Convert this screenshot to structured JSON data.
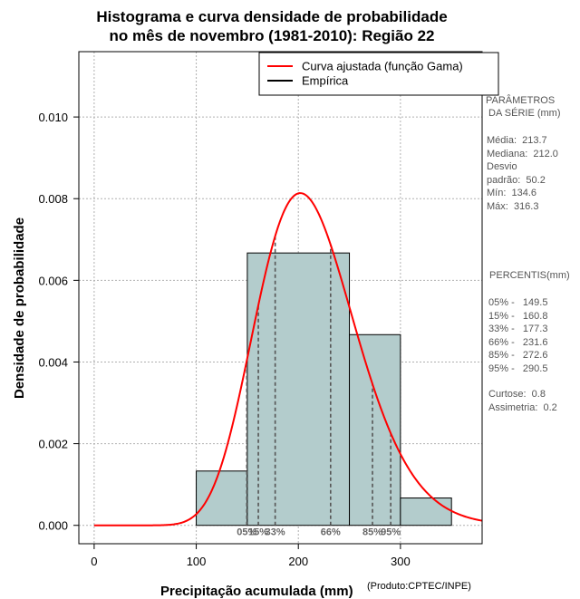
{
  "chart_data": {
    "type": "bar",
    "title_line1": "Histograma e curva densidade de probabilidade",
    "title_line2": "no mês de novembro (1981-2010): Região 22",
    "xlabel": "Precipitação acumulada (mm)",
    "ylabel": "Densidade de probabilidade",
    "credit": "(Produto:CPTEC/INPE)",
    "xlim": [
      -15,
      380
    ],
    "ylim": [
      -0.00045,
      0.0116
    ],
    "x_ticks": [
      0,
      100,
      200,
      300
    ],
    "y_ticks": [
      0.0,
      0.002,
      0.004,
      0.006,
      0.008,
      0.01
    ],
    "y_tick_labels": [
      "0.000",
      "0.002",
      "0.004",
      "0.006",
      "0.008",
      "0.010"
    ],
    "grid": true,
    "bins": [
      {
        "x0": 100,
        "x1": 150,
        "density": 0.00133
      },
      {
        "x0": 150,
        "x1": 250,
        "density": 0.00667
      },
      {
        "x0": 250,
        "x1": 300,
        "density": 0.00467
      },
      {
        "x0": 300,
        "x1": 350,
        "density": 0.00067
      }
    ],
    "gamma_fit": {
      "mean": 213.7,
      "sd": 50.2,
      "x_start": 0,
      "x_end": 380
    },
    "legend": {
      "position": "top-right",
      "entries": [
        {
          "label": "Curva ajustada (função Gama)",
          "color": "#ff0000"
        },
        {
          "label": "Empírica",
          "color": "#000000"
        }
      ]
    },
    "percentile_lines": [
      {
        "label": "05%",
        "x": 149.5
      },
      {
        "label": "15%",
        "x": 160.8
      },
      {
        "label": "33%",
        "x": 177.3
      },
      {
        "label": "66%",
        "x": 231.6
      },
      {
        "label": "85%",
        "x": 272.6
      },
      {
        "label": "95%",
        "x": 290.5
      }
    ],
    "colors": {
      "bar_fill": "#b3cccc",
      "curve": "#ff0000",
      "grid": "#b0b0b0",
      "pct_line": "#555555",
      "pct_label": "#666666"
    }
  },
  "params": {
    "heading1": "PARÂMETROS",
    "heading2": " DA SÉRIE (mm)",
    "lines": [
      "Média:  213.7",
      "Mediana:  212.0",
      "Desvio",
      "padrão:  50.2",
      "Mín:  134.6",
      "Máx:  316.3"
    ]
  },
  "percentis": {
    "heading": " PERCENTIS(mm)",
    "lines": [
      "05% -   149.5",
      "15% -   160.8",
      "33% -   177.3",
      "66% -   231.6",
      "85% -   272.6",
      "95% -   290.5"
    ]
  },
  "extra": {
    "lines": [
      "Curtose:  0.8",
      "Assimetria:  0.2"
    ]
  }
}
